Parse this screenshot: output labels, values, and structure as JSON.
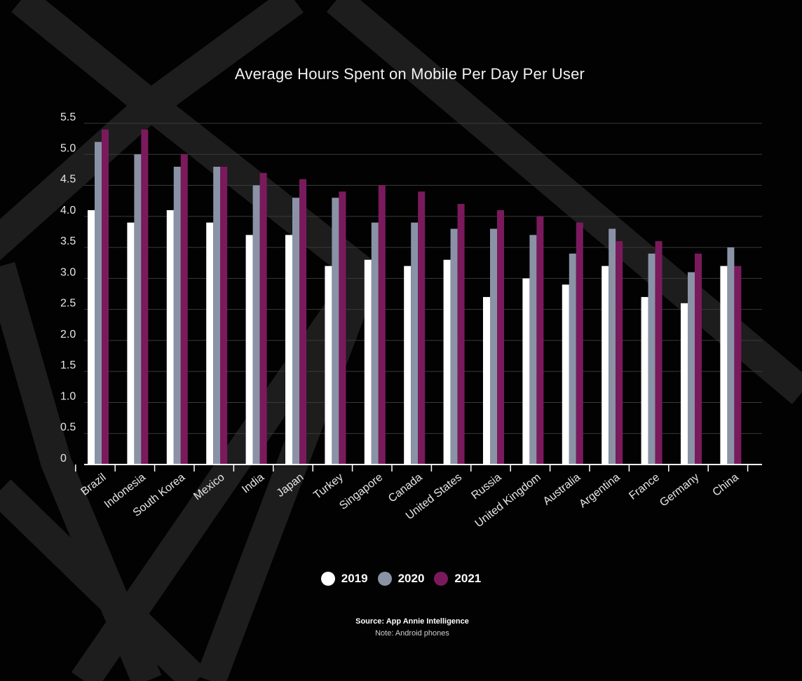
{
  "chart_data": {
    "type": "bar",
    "title": "Average Hours Spent on Mobile Per Day Per User",
    "xlabel": "",
    "ylabel": "",
    "ylim": [
      0,
      5.5
    ],
    "yticks": [
      "0",
      "0.5",
      "1.0",
      "1.5",
      "2.0",
      "2.5",
      "3.0",
      "3.5",
      "4.0",
      "4.5",
      "5.0",
      "5.5"
    ],
    "grid": true,
    "legend_position": "bottom",
    "categories": [
      "Brazil",
      "Indonesia",
      "South Korea",
      "Mexico",
      "India",
      "Japan",
      "Turkey",
      "Singapore",
      "Canada",
      "United States",
      "Russia",
      "United Kingdom",
      "Australia",
      "Argentina",
      "France",
      "Germany",
      "China"
    ],
    "series": [
      {
        "name": "2019",
        "color": "#ffffff",
        "values": [
          4.1,
          3.9,
          4.1,
          3.9,
          3.7,
          3.7,
          3.2,
          3.3,
          3.2,
          3.3,
          2.7,
          3.0,
          2.9,
          3.2,
          2.7,
          2.6,
          3.2
        ]
      },
      {
        "name": "2020",
        "color": "#8a93a6",
        "values": [
          5.2,
          5.0,
          4.8,
          4.8,
          4.5,
          4.3,
          4.3,
          3.9,
          3.9,
          3.8,
          3.8,
          3.7,
          3.4,
          3.8,
          3.4,
          3.1,
          3.5
        ]
      },
      {
        "name": "2021",
        "color": "#7a1a5c",
        "values": [
          5.4,
          5.4,
          5.0,
          4.8,
          4.7,
          4.6,
          4.4,
          4.5,
          4.4,
          4.2,
          4.1,
          4.0,
          3.9,
          3.6,
          3.6,
          3.4,
          3.2
        ]
      }
    ]
  },
  "source": "Source: App Annie Intelligence",
  "note": "Note: Android phones"
}
